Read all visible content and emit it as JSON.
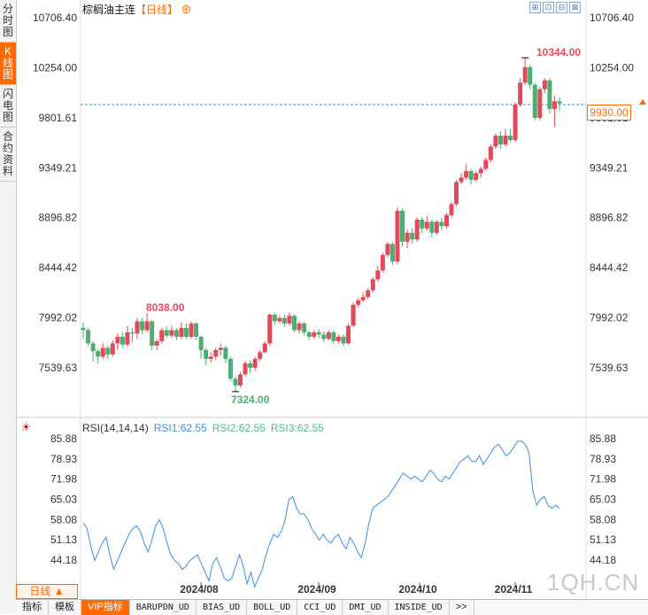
{
  "sidebar": {
    "tabs": [
      {
        "label": "分时图",
        "active": false
      },
      {
        "label": "K线图",
        "active": true
      },
      {
        "label": "闪电图",
        "active": false
      },
      {
        "label": "合约资料",
        "active": false
      }
    ]
  },
  "header": {
    "title": "棕榈油主连",
    "period": "【日线】",
    "add_icon": "⊕",
    "tools": [
      "⊞",
      "⊡",
      "⊟",
      "⊠"
    ]
  },
  "price_axis": {
    "labels": [
      "10706.40",
      "10254.00",
      "9801.61",
      "9349.21",
      "8896.82",
      "8444.42",
      "7992.02",
      "7539.63"
    ]
  },
  "annotations": {
    "high": "10344.00",
    "high_left": "8038.00",
    "low": "7324.00",
    "current_price": "9930.00",
    "hidden_right_label": "9801.61"
  },
  "rsi": {
    "name": "RSI(14,14,14)",
    "rsi1": "RSI1:62.55",
    "rsi2": "RSI2:62.55",
    "rsi3": "RSI3:62.55",
    "axis_labels": [
      "85.88",
      "78.93",
      "71.98",
      "65.03",
      "58.08",
      "51.13",
      "44.18"
    ],
    "values": [
      57,
      55,
      49,
      44,
      47,
      50,
      52,
      46,
      41,
      44,
      47,
      50,
      53,
      55,
      56,
      54,
      50,
      47,
      51,
      56,
      58,
      55,
      50,
      46,
      44,
      43,
      41,
      42,
      44,
      45,
      46,
      43,
      40,
      37,
      43,
      45,
      42,
      38,
      37,
      38,
      42,
      46,
      42,
      36,
      40,
      35,
      38,
      41,
      46,
      50,
      53,
      52,
      54,
      58,
      65,
      66,
      62,
      60,
      60,
      58,
      55,
      53,
      51,
      53,
      51,
      50,
      52,
      53,
      50,
      48,
      52,
      50,
      47,
      45,
      50,
      57,
      62,
      63,
      64,
      65,
      66,
      68,
      70,
      72,
      74,
      73,
      72,
      73,
      72,
      71,
      73,
      75,
      74,
      72,
      71,
      73,
      72,
      74,
      76,
      78,
      79,
      80,
      78,
      78,
      80,
      77,
      79,
      81,
      83,
      84,
      82,
      80,
      81,
      83,
      85,
      85,
      84,
      81,
      68,
      63,
      65,
      66,
      63,
      62,
      63,
      62
    ],
    "colors": {
      "rsi1": "#3a8ee6",
      "rsi2": "#4db8a0",
      "rsi3": "#4db8a0"
    }
  },
  "x_axis": {
    "labels": [
      "2024/08",
      "2024/09",
      "2024/10",
      "2024/11"
    ]
  },
  "candles": [
    {
      "o": 7900,
      "c": 7880,
      "h": 7950,
      "l": 7800
    },
    {
      "o": 7880,
      "c": 7760,
      "h": 7900,
      "l": 7740
    },
    {
      "o": 7760,
      "c": 7690,
      "h": 7780,
      "l": 7600
    },
    {
      "o": 7690,
      "c": 7640,
      "h": 7710,
      "l": 7580
    },
    {
      "o": 7640,
      "c": 7720,
      "h": 7760,
      "l": 7620
    },
    {
      "o": 7720,
      "c": 7660,
      "h": 7740,
      "l": 7620
    },
    {
      "o": 7660,
      "c": 7760,
      "h": 7790,
      "l": 7640
    },
    {
      "o": 7760,
      "c": 7820,
      "h": 7850,
      "l": 7700
    },
    {
      "o": 7820,
      "c": 7750,
      "h": 7860,
      "l": 7720
    },
    {
      "o": 7750,
      "c": 7860,
      "h": 7920,
      "l": 7730
    },
    {
      "o": 7860,
      "c": 7850,
      "h": 7900,
      "l": 7770
    },
    {
      "o": 7850,
      "c": 7960,
      "h": 7990,
      "l": 7800
    },
    {
      "o": 7960,
      "c": 7880,
      "h": 7990,
      "l": 7840
    },
    {
      "o": 7880,
      "c": 7960,
      "h": 8038,
      "l": 7860
    },
    {
      "o": 7960,
      "c": 7740,
      "h": 7970,
      "l": 7700
    },
    {
      "o": 7740,
      "c": 7780,
      "h": 7800,
      "l": 7700
    },
    {
      "o": 7780,
      "c": 7880,
      "h": 7900,
      "l": 7760
    },
    {
      "o": 7880,
      "c": 7830,
      "h": 7910,
      "l": 7810
    },
    {
      "o": 7830,
      "c": 7880,
      "h": 7920,
      "l": 7810
    },
    {
      "o": 7880,
      "c": 7820,
      "h": 7900,
      "l": 7790
    },
    {
      "o": 7820,
      "c": 7900,
      "h": 7950,
      "l": 7800
    },
    {
      "o": 7900,
      "c": 7820,
      "h": 7940,
      "l": 7800
    },
    {
      "o": 7820,
      "c": 7940,
      "h": 7960,
      "l": 7800
    },
    {
      "o": 7940,
      "c": 7820,
      "h": 7950,
      "l": 7790
    },
    {
      "o": 7820,
      "c": 7700,
      "h": 7830,
      "l": 7620
    },
    {
      "o": 7700,
      "c": 7620,
      "h": 7720,
      "l": 7560
    },
    {
      "o": 7620,
      "c": 7640,
      "h": 7680,
      "l": 7590
    },
    {
      "o": 7640,
      "c": 7700,
      "h": 7720,
      "l": 7610
    },
    {
      "o": 7700,
      "c": 7720,
      "h": 7760,
      "l": 7650
    },
    {
      "o": 7720,
      "c": 7620,
      "h": 7740,
      "l": 7580
    },
    {
      "o": 7620,
      "c": 7440,
      "h": 7640,
      "l": 7420
    },
    {
      "o": 7440,
      "c": 7380,
      "h": 7460,
      "l": 7324
    },
    {
      "o": 7380,
      "c": 7480,
      "h": 7500,
      "l": 7360
    },
    {
      "o": 7480,
      "c": 7580,
      "h": 7600,
      "l": 7460
    },
    {
      "o": 7580,
      "c": 7540,
      "h": 7610,
      "l": 7490
    },
    {
      "o": 7540,
      "c": 7620,
      "h": 7640,
      "l": 7510
    },
    {
      "o": 7620,
      "c": 7680,
      "h": 7700,
      "l": 7600
    },
    {
      "o": 7680,
      "c": 7760,
      "h": 7780,
      "l": 7670
    },
    {
      "o": 7760,
      "c": 8020,
      "h": 8030,
      "l": 7740
    },
    {
      "o": 8020,
      "c": 7960,
      "h": 8040,
      "l": 7930
    },
    {
      "o": 7960,
      "c": 7990,
      "h": 8010,
      "l": 7940
    },
    {
      "o": 7990,
      "c": 7940,
      "h": 8020,
      "l": 7910
    },
    {
      "o": 7940,
      "c": 8010,
      "h": 8040,
      "l": 7920
    },
    {
      "o": 8010,
      "c": 7880,
      "h": 8020,
      "l": 7860
    },
    {
      "o": 7880,
      "c": 7940,
      "h": 7960,
      "l": 7850
    },
    {
      "o": 7940,
      "c": 7860,
      "h": 7960,
      "l": 7830
    },
    {
      "o": 7860,
      "c": 7820,
      "h": 7880,
      "l": 7790
    },
    {
      "o": 7820,
      "c": 7860,
      "h": 7880,
      "l": 7800
    },
    {
      "o": 7860,
      "c": 7840,
      "h": 7890,
      "l": 7810
    },
    {
      "o": 7840,
      "c": 7800,
      "h": 7870,
      "l": 7770
    },
    {
      "o": 7800,
      "c": 7860,
      "h": 7880,
      "l": 7790
    },
    {
      "o": 7860,
      "c": 7780,
      "h": 7880,
      "l": 7760
    },
    {
      "o": 7780,
      "c": 7820,
      "h": 7840,
      "l": 7760
    },
    {
      "o": 7820,
      "c": 7760,
      "h": 7840,
      "l": 7740
    },
    {
      "o": 7760,
      "c": 7920,
      "h": 7940,
      "l": 7750
    },
    {
      "o": 7920,
      "c": 8110,
      "h": 8130,
      "l": 7910
    },
    {
      "o": 8110,
      "c": 8150,
      "h": 8170,
      "l": 8090
    },
    {
      "o": 8150,
      "c": 8180,
      "h": 8220,
      "l": 8130
    },
    {
      "o": 8180,
      "c": 8240,
      "h": 8260,
      "l": 8160
    },
    {
      "o": 8240,
      "c": 8340,
      "h": 8360,
      "l": 8220
    },
    {
      "o": 8340,
      "c": 8420,
      "h": 8460,
      "l": 8320
    },
    {
      "o": 8420,
      "c": 8560,
      "h": 8580,
      "l": 8400
    },
    {
      "o": 8560,
      "c": 8660,
      "h": 8680,
      "l": 8540
    },
    {
      "o": 8660,
      "c": 8500,
      "h": 8680,
      "l": 8470
    },
    {
      "o": 8500,
      "c": 8960,
      "h": 8990,
      "l": 8480
    },
    {
      "o": 8960,
      "c": 8680,
      "h": 8980,
      "l": 8640
    },
    {
      "o": 8680,
      "c": 8760,
      "h": 8790,
      "l": 8620
    },
    {
      "o": 8760,
      "c": 8700,
      "h": 8800,
      "l": 8660
    },
    {
      "o": 8700,
      "c": 8880,
      "h": 8900,
      "l": 8680
    },
    {
      "o": 8880,
      "c": 8800,
      "h": 8900,
      "l": 8760
    },
    {
      "o": 8800,
      "c": 8860,
      "h": 8910,
      "l": 8780
    },
    {
      "o": 8860,
      "c": 8760,
      "h": 8880,
      "l": 8720
    },
    {
      "o": 8760,
      "c": 8860,
      "h": 8880,
      "l": 8740
    },
    {
      "o": 8860,
      "c": 8820,
      "h": 8900,
      "l": 8780
    },
    {
      "o": 8820,
      "c": 8920,
      "h": 8940,
      "l": 8800
    },
    {
      "o": 8920,
      "c": 9020,
      "h": 9040,
      "l": 8900
    },
    {
      "o": 9020,
      "c": 9220,
      "h": 9240,
      "l": 9000
    },
    {
      "o": 9220,
      "c": 9260,
      "h": 9300,
      "l": 9200
    },
    {
      "o": 9260,
      "c": 9320,
      "h": 9380,
      "l": 9240
    },
    {
      "o": 9320,
      "c": 9240,
      "h": 9340,
      "l": 9200
    },
    {
      "o": 9240,
      "c": 9300,
      "h": 9320,
      "l": 9220
    },
    {
      "o": 9300,
      "c": 9340,
      "h": 9360,
      "l": 9260
    },
    {
      "o": 9340,
      "c": 9420,
      "h": 9440,
      "l": 9320
    },
    {
      "o": 9420,
      "c": 9540,
      "h": 9560,
      "l": 9400
    },
    {
      "o": 9540,
      "c": 9640,
      "h": 9660,
      "l": 9520
    },
    {
      "o": 9640,
      "c": 9560,
      "h": 9680,
      "l": 9520
    },
    {
      "o": 9560,
      "c": 9640,
      "h": 9700,
      "l": 9540
    },
    {
      "o": 9640,
      "c": 9600,
      "h": 9700,
      "l": 9580
    },
    {
      "o": 9600,
      "c": 9920,
      "h": 9940,
      "l": 9580
    },
    {
      "o": 9920,
      "c": 10120,
      "h": 10160,
      "l": 9900
    },
    {
      "o": 10120,
      "c": 10260,
      "h": 10344,
      "l": 10100
    },
    {
      "o": 10260,
      "c": 10100,
      "h": 10280,
      "l": 10060
    },
    {
      "o": 10100,
      "c": 9800,
      "h": 10120,
      "l": 9780
    },
    {
      "o": 9800,
      "c": 10060,
      "h": 10080,
      "l": 9780
    },
    {
      "o": 10060,
      "c": 10140,
      "h": 10160,
      "l": 10020
    },
    {
      "o": 10140,
      "c": 9880,
      "h": 10160,
      "l": 9840
    },
    {
      "o": 9880,
      "c": 9950,
      "h": 10000,
      "l": 9720
    },
    {
      "o": 9950,
      "c": 9930,
      "h": 9990,
      "l": 9860
    }
  ],
  "bottom_bar": {
    "period_button": "日线 ▲",
    "items": [
      "指标",
      "模板",
      "VIP指标",
      "BARUPDN_UD",
      "BIAS_UD",
      "BOLL_UD",
      "CCI_UD",
      "DMI_UD",
      "INSIDE_UD",
      ">>"
    ]
  },
  "watermark": "1QH.CN",
  "colors": {
    "up": "#e24a5c",
    "down": "#4cae72",
    "accent": "#ff6a00",
    "dashed": "#3a8ee6"
  }
}
